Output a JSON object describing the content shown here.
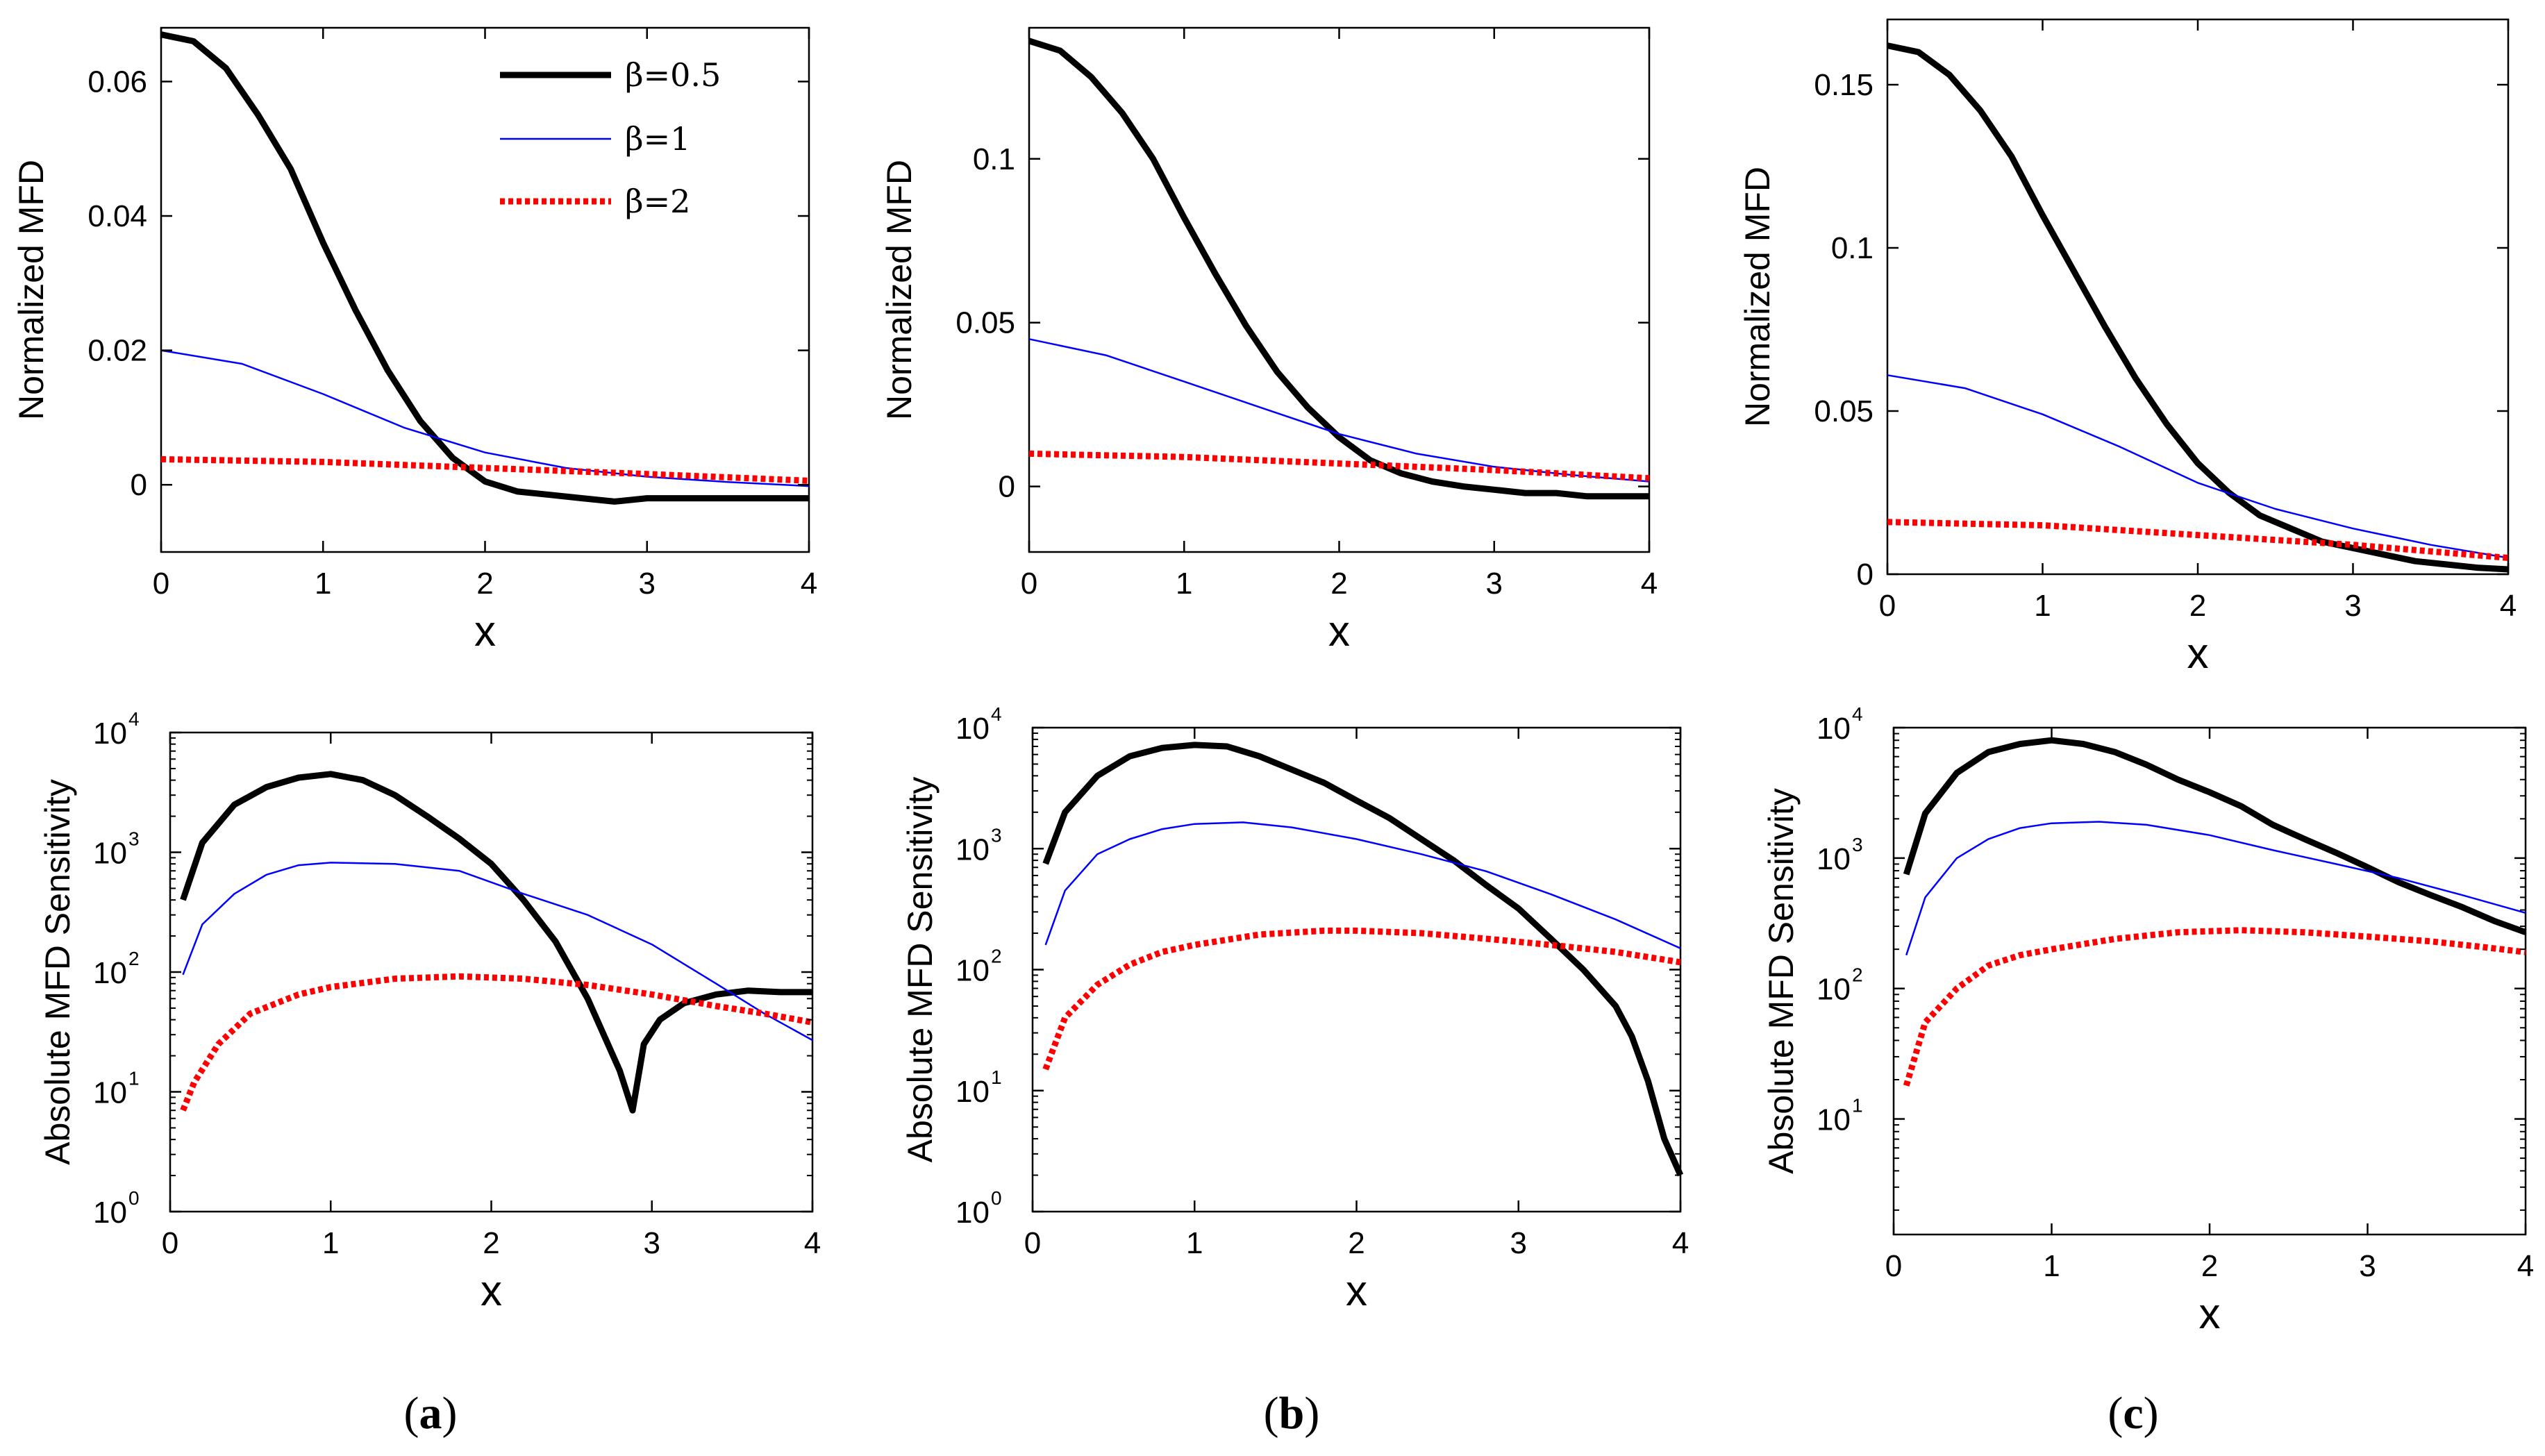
{
  "legend": {
    "entries": [
      {
        "label": "β=0.5",
        "color": "#000000",
        "style": "solid-thick"
      },
      {
        "label": "β=1",
        "color": "#0000ff",
        "style": "solid-thin"
      },
      {
        "label": "β=2",
        "color": "#ff0000",
        "style": "dotted"
      }
    ]
  },
  "captions": [
    {
      "open": "(",
      "letter": "a",
      "close": ")"
    },
    {
      "open": "(",
      "letter": "b",
      "close": ")"
    },
    {
      "open": "(",
      "letter": "c",
      "close": ")"
    }
  ],
  "chart_data": [
    {
      "id": "a-top",
      "type": "line",
      "xlabel": "x",
      "ylabel": "Normalized MFD",
      "xlim": [
        0,
        4
      ],
      "ylim": [
        -0.01,
        0.068
      ],
      "xticks": [
        "0",
        "1",
        "2",
        "3",
        "4"
      ],
      "yticks": [
        {
          "v": 0,
          "label": "0"
        },
        {
          "v": 0.02,
          "label": "0.02"
        },
        {
          "v": 0.04,
          "label": "0.04"
        },
        {
          "v": 0.06,
          "label": "0.06"
        }
      ],
      "series": [
        {
          "name": "β=0.5",
          "x": [
            0,
            0.2,
            0.4,
            0.6,
            0.8,
            1.0,
            1.2,
            1.4,
            1.6,
            1.8,
            2.0,
            2.2,
            2.4,
            2.6,
            2.8,
            3.0,
            3.2,
            3.4,
            3.6,
            3.8,
            4.0
          ],
          "y": [
            0.067,
            0.066,
            0.062,
            0.055,
            0.047,
            0.036,
            0.026,
            0.017,
            0.0095,
            0.004,
            0.0005,
            -0.001,
            -0.0015,
            -0.002,
            -0.0025,
            -0.002,
            -0.002,
            -0.002,
            -0.002,
            -0.002,
            -0.002
          ]
        },
        {
          "name": "β=1",
          "x": [
            0,
            0.5,
            1.0,
            1.5,
            2.0,
            2.5,
            3.0,
            3.5,
            4.0
          ],
          "y": [
            0.02,
            0.018,
            0.0135,
            0.0085,
            0.0048,
            0.0025,
            0.0012,
            0.0004,
            -0.0002
          ]
        },
        {
          "name": "β=2",
          "x": [
            0,
            1.0,
            2.0,
            3.0,
            4.0
          ],
          "y": [
            0.0038,
            0.0034,
            0.0025,
            0.0016,
            0.0006
          ]
        }
      ]
    },
    {
      "id": "b-top",
      "type": "line",
      "xlabel": "x",
      "ylabel": "Normalized MFD",
      "xlim": [
        0,
        4
      ],
      "ylim": [
        -0.02,
        0.14
      ],
      "xticks": [
        "0",
        "1",
        "2",
        "3",
        "4"
      ],
      "yticks": [
        {
          "v": 0,
          "label": "0"
        },
        {
          "v": 0.05,
          "label": "0.05"
        },
        {
          "v": 0.1,
          "label": "0.1"
        }
      ],
      "series": [
        {
          "name": "β=0.5",
          "x": [
            0,
            0.2,
            0.4,
            0.6,
            0.8,
            1.0,
            1.2,
            1.4,
            1.6,
            1.8,
            2.0,
            2.2,
            2.4,
            2.6,
            2.8,
            3.0,
            3.2,
            3.4,
            3.6,
            3.8,
            4.0
          ],
          "y": [
            0.136,
            0.133,
            0.125,
            0.114,
            0.1,
            0.082,
            0.065,
            0.049,
            0.035,
            0.024,
            0.015,
            0.008,
            0.004,
            0.0015,
            0.0,
            -0.001,
            -0.002,
            -0.002,
            -0.003,
            -0.003,
            -0.003
          ]
        },
        {
          "name": "β=1",
          "x": [
            0,
            0.5,
            1.0,
            1.5,
            2.0,
            2.5,
            3.0,
            3.5,
            4.0
          ],
          "y": [
            0.045,
            0.04,
            0.032,
            0.024,
            0.016,
            0.01,
            0.006,
            0.0035,
            0.0015
          ]
        },
        {
          "name": "β=2",
          "x": [
            0,
            1.0,
            2.0,
            3.0,
            4.0
          ],
          "y": [
            0.01,
            0.009,
            0.007,
            0.005,
            0.0025
          ]
        }
      ]
    },
    {
      "id": "c-top",
      "type": "line",
      "xlabel": "x",
      "ylabel": "Normalized MFD",
      "xlim": [
        0,
        4
      ],
      "ylim": [
        0,
        0.17
      ],
      "xticks": [
        "0",
        "1",
        "2",
        "3",
        "4"
      ],
      "yticks": [
        {
          "v": 0,
          "label": "0"
        },
        {
          "v": 0.05,
          "label": "0.05"
        },
        {
          "v": 0.1,
          "label": "0.1"
        },
        {
          "v": 0.15,
          "label": "0.15"
        }
      ],
      "series": [
        {
          "name": "β=0.5",
          "x": [
            0,
            0.2,
            0.4,
            0.6,
            0.8,
            1.0,
            1.2,
            1.4,
            1.6,
            1.8,
            2.0,
            2.2,
            2.4,
            2.6,
            2.8,
            3.0,
            3.2,
            3.4,
            3.6,
            3.8,
            4.0
          ],
          "y": [
            0.162,
            0.16,
            0.153,
            0.142,
            0.128,
            0.11,
            0.093,
            0.076,
            0.06,
            0.046,
            0.034,
            0.025,
            0.018,
            0.014,
            0.01,
            0.008,
            0.006,
            0.004,
            0.003,
            0.002,
            0.0015
          ]
        },
        {
          "name": "β=1",
          "x": [
            0,
            0.5,
            1.0,
            1.5,
            2.0,
            2.5,
            3.0,
            3.5,
            4.0
          ],
          "y": [
            0.061,
            0.057,
            0.049,
            0.039,
            0.028,
            0.02,
            0.014,
            0.009,
            0.005
          ]
        },
        {
          "name": "β=2",
          "x": [
            0,
            1.0,
            2.0,
            3.0,
            4.0
          ],
          "y": [
            0.016,
            0.015,
            0.012,
            0.009,
            0.005
          ]
        }
      ]
    },
    {
      "id": "a-bottom",
      "type": "line",
      "yscale": "log",
      "xlabel": "x",
      "ylabel": "Absolute MFD Sensitivity",
      "xlim": [
        0,
        4
      ],
      "ylim": [
        1,
        10000
      ],
      "xticks": [
        "0",
        "1",
        "2",
        "3",
        "4"
      ],
      "yticks": [
        {
          "exp": 0,
          "base": "10",
          "sup": "0"
        },
        {
          "exp": 1,
          "base": "10",
          "sup": "1"
        },
        {
          "exp": 2,
          "base": "10",
          "sup": "2"
        },
        {
          "exp": 3,
          "base": "10",
          "sup": "3"
        },
        {
          "exp": 4,
          "base": "10",
          "sup": "4"
        }
      ],
      "series": [
        {
          "name": "β=0.5",
          "x": [
            0.08,
            0.2,
            0.4,
            0.6,
            0.8,
            1.0,
            1.2,
            1.4,
            1.6,
            1.8,
            2.0,
            2.2,
            2.4,
            2.6,
            2.7,
            2.8,
            2.88,
            2.95,
            3.05,
            3.2,
            3.4,
            3.6,
            3.8,
            4.0
          ],
          "y": [
            400,
            1200,
            2500,
            3500,
            4200,
            4500,
            4000,
            3000,
            2000,
            1300,
            800,
            400,
            180,
            60,
            30,
            15,
            7,
            25,
            40,
            55,
            65,
            70,
            68,
            68
          ]
        },
        {
          "name": "β=1",
          "x": [
            0.08,
            0.2,
            0.4,
            0.6,
            0.8,
            1.0,
            1.4,
            1.8,
            2.2,
            2.6,
            3.0,
            3.4,
            3.7,
            4.0
          ],
          "y": [
            95,
            250,
            450,
            650,
            780,
            820,
            800,
            700,
            450,
            300,
            170,
            80,
            45,
            27
          ]
        },
        {
          "name": "β=2",
          "x": [
            0.08,
            0.15,
            0.3,
            0.5,
            0.8,
            1.0,
            1.4,
            1.8,
            2.2,
            2.6,
            3.0,
            3.4,
            3.7,
            4.0
          ],
          "y": [
            7,
            12,
            25,
            45,
            65,
            75,
            88,
            92,
            88,
            78,
            65,
            52,
            45,
            38
          ]
        }
      ]
    },
    {
      "id": "b-bottom",
      "type": "line",
      "yscale": "log",
      "xlabel": "x",
      "ylabel": "Absolute MFD Sensitivity",
      "xlim": [
        0,
        4
      ],
      "ylim": [
        1,
        10000
      ],
      "xticks": [
        "0",
        "1",
        "2",
        "3",
        "4"
      ],
      "yticks": [
        {
          "exp": 0,
          "base": "10",
          "sup": "0"
        },
        {
          "exp": 1,
          "base": "10",
          "sup": "1"
        },
        {
          "exp": 2,
          "base": "10",
          "sup": "2"
        },
        {
          "exp": 3,
          "base": "10",
          "sup": "3"
        },
        {
          "exp": 4,
          "base": "10",
          "sup": "4"
        }
      ],
      "series": [
        {
          "name": "β=0.5",
          "x": [
            0.08,
            0.2,
            0.4,
            0.6,
            0.8,
            1.0,
            1.2,
            1.4,
            1.6,
            1.8,
            2.0,
            2.2,
            2.4,
            2.6,
            2.8,
            3.0,
            3.2,
            3.4,
            3.6,
            3.7,
            3.8,
            3.9,
            4.0
          ],
          "y": [
            750,
            2000,
            4000,
            5800,
            6800,
            7200,
            7000,
            5800,
            4500,
            3500,
            2500,
            1800,
            1200,
            800,
            500,
            320,
            180,
            100,
            50,
            28,
            12,
            4,
            2
          ]
        },
        {
          "name": "β=1",
          "x": [
            0.08,
            0.2,
            0.4,
            0.6,
            0.8,
            1.0,
            1.3,
            1.6,
            2.0,
            2.4,
            2.8,
            3.2,
            3.6,
            4.0
          ],
          "y": [
            160,
            450,
            900,
            1200,
            1450,
            1600,
            1650,
            1500,
            1200,
            900,
            650,
            420,
            260,
            150
          ]
        },
        {
          "name": "β=2",
          "x": [
            0.08,
            0.2,
            0.4,
            0.6,
            0.8,
            1.0,
            1.4,
            1.8,
            2.0,
            2.4,
            2.8,
            3.2,
            3.6,
            4.0
          ],
          "y": [
            15,
            40,
            75,
            110,
            140,
            160,
            195,
            210,
            210,
            200,
            180,
            160,
            140,
            115
          ]
        }
      ]
    },
    {
      "id": "c-bottom",
      "type": "line",
      "yscale": "log",
      "xlabel": "x",
      "ylabel": "Absolute MFD Sensitivity",
      "xlim": [
        0,
        4
      ],
      "ylim": [
        1.3,
        10000
      ],
      "xticks": [
        "0",
        "1",
        "2",
        "3",
        "4"
      ],
      "yticks": [
        {
          "exp": 1,
          "base": "10",
          "sup": "1"
        },
        {
          "exp": 2,
          "base": "10",
          "sup": "2"
        },
        {
          "exp": 3,
          "base": "10",
          "sup": "3"
        },
        {
          "exp": 4,
          "base": "10",
          "sup": "4"
        }
      ],
      "series": [
        {
          "name": "β=0.5",
          "x": [
            0.08,
            0.2,
            0.4,
            0.6,
            0.8,
            1.0,
            1.2,
            1.4,
            1.6,
            1.8,
            2.0,
            2.2,
            2.4,
            2.6,
            2.8,
            3.0,
            3.2,
            3.4,
            3.6,
            3.8,
            4.0
          ],
          "y": [
            750,
            2200,
            4500,
            6500,
            7500,
            8000,
            7500,
            6500,
            5200,
            4000,
            3200,
            2500,
            1800,
            1400,
            1100,
            850,
            650,
            520,
            420,
            330,
            270
          ]
        },
        {
          "name": "β=1",
          "x": [
            0.08,
            0.2,
            0.4,
            0.6,
            0.8,
            1.0,
            1.3,
            1.6,
            2.0,
            2.4,
            2.8,
            3.2,
            3.6,
            4.0
          ],
          "y": [
            180,
            500,
            1000,
            1400,
            1700,
            1850,
            1900,
            1800,
            1500,
            1150,
            900,
            700,
            520,
            380
          ]
        },
        {
          "name": "β=2",
          "x": [
            0.08,
            0.2,
            0.4,
            0.6,
            0.8,
            1.0,
            1.4,
            1.8,
            2.2,
            2.6,
            3.0,
            3.4,
            3.7,
            4.0
          ],
          "y": [
            18,
            55,
            100,
            150,
            180,
            200,
            240,
            270,
            280,
            270,
            250,
            230,
            210,
            190
          ]
        }
      ]
    }
  ]
}
